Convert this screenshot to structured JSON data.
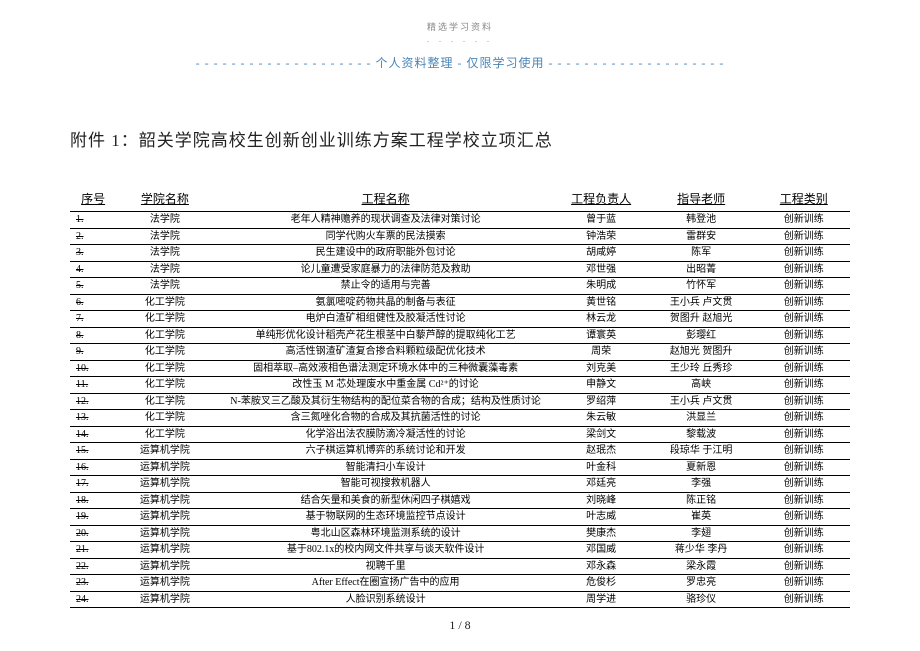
{
  "header": {
    "top_label": "精选学习资料",
    "dots": ". . . . . .",
    "banner_dashes": "- - - - - - - - - - - - - - - - - - - -",
    "banner_text": "个人资料整理 - 仅限学习使用",
    "title": "附件 1：韶关学院高校生创新创业训练方案工程学校立项汇总"
  },
  "table": {
    "columns": [
      "序号",
      "学院名称",
      "工程名称",
      "工程负责人",
      "指导老师",
      "工程类别"
    ],
    "rows": [
      [
        "1.",
        "法学院",
        "老年人精神赡养的现状调查及法律对策讨论",
        "曾于蓝",
        "韩登池",
        "创新训练"
      ],
      [
        "2.",
        "法学院",
        "同学代购火车票的民法摸索",
        "钟浩荣",
        "雷群安",
        "创新训练"
      ],
      [
        "3.",
        "法学院",
        "民生建设中的政府职能外包讨论",
        "胡咸婷",
        "陈军",
        "创新训练"
      ],
      [
        "4.",
        "法学院",
        "论儿童遭受家庭暴力的法律防范及救助",
        "邓世强",
        "出昭菁",
        "创新训练"
      ],
      [
        "5.",
        "法学院",
        "禁止令的适用与完善",
        "朱明成",
        "竹怀军",
        "创新训练"
      ],
      [
        "6.",
        "化工学院",
        "氨氯嘧啶药物共晶的制备与表征",
        "黄世铭",
        "王小兵 卢文贯",
        "创新训练"
      ],
      [
        "7.",
        "化工学院",
        "电炉白渣矿相组健性及胶凝活性讨论",
        "林云龙",
        "贺图升 赵旭光",
        "创新训练"
      ],
      [
        "8.",
        "化工学院",
        "单纯形优化设计稻壳产花生根茎中白藜芦醇的提取纯化工艺",
        "谭寰英",
        "彭璎红",
        "创新训练"
      ],
      [
        "9.",
        "化工学院",
        "高活性钢渣矿渣复合掺合料颗粒级配优化技术",
        "周荣",
        "赵旭光 贺图升",
        "创新训练"
      ],
      [
        "10.",
        "化工学院",
        "固相萃取–高效液相色谱法测定环境水体中的三种微囊藻毒素",
        "刘克美",
        "王少玲 丘秀珍",
        "创新训练"
      ],
      [
        "11.",
        "化工学院",
        "改性玉 M 芯处理废水中重金属 Cd²⁺的讨论",
        "申静文",
        "高峡",
        "创新训练"
      ],
      [
        "12.",
        "化工学院",
        "N-苯胺叉三乙酸及其衍生物结构的配位菜合物的合成；结构及性质讨论",
        "罗绍萍",
        "王小兵 卢文贯",
        "创新训练"
      ],
      [
        "13.",
        "化工学院",
        "含三氮唑化合物的合成及其抗菌活性的讨论",
        "朱云敏",
        "洪显兰",
        "创新训练"
      ],
      [
        "14.",
        "化工学院",
        "化学浴出法农膜防滴冷凝活性的讨论",
        "梁剑文",
        "黎载波",
        "创新训练"
      ],
      [
        "15.",
        "运算机学院",
        "六子棋运算机博弈的系统讨论和开发",
        "赵珉杰",
        "段琼华 于江明",
        "创新训练"
      ],
      [
        "16.",
        "运算机学院",
        "智能清扫小车设计",
        "叶金科",
        "夏新恩",
        "创新训练"
      ],
      [
        "17.",
        "运算机学院",
        "智能可视搜救机器人",
        "邓廷亮",
        "李强",
        "创新训练"
      ],
      [
        "18.",
        "运算机学院",
        "结合矢量和美食的新型休闲四子棋嬉戏",
        "刘晓峰",
        "陈正铭",
        "创新训练"
      ],
      [
        "19.",
        "运算机学院",
        "基于物联网的生态环境监控节点设计",
        "叶志威",
        "崔英",
        "创新训练"
      ],
      [
        "20.",
        "运算机学院",
        "粤北山区森林环境监测系统的设计",
        "樊康杰",
        "李翅",
        "创新训练"
      ],
      [
        "21.",
        "运算机学院",
        "基于802.1x的校内网文件共享与谈天软件设计",
        "邓国威",
        "蒋少华 李丹",
        "创新训练"
      ],
      [
        "22.",
        "运算机学院",
        "视聘千里",
        "邓永森",
        "梁永霞",
        "创新训练"
      ],
      [
        "23.",
        "运算机学院",
        "After Effect在圈宣扬广告中的应用",
        "危俊杉",
        "罗忠亮",
        "创新训练"
      ],
      [
        "24.",
        "运算机学院",
        "人脸识别系统设计",
        "周学进",
        "骆珍仪",
        "创新训练"
      ]
    ]
  },
  "footer": {
    "page": "1 / 8"
  }
}
